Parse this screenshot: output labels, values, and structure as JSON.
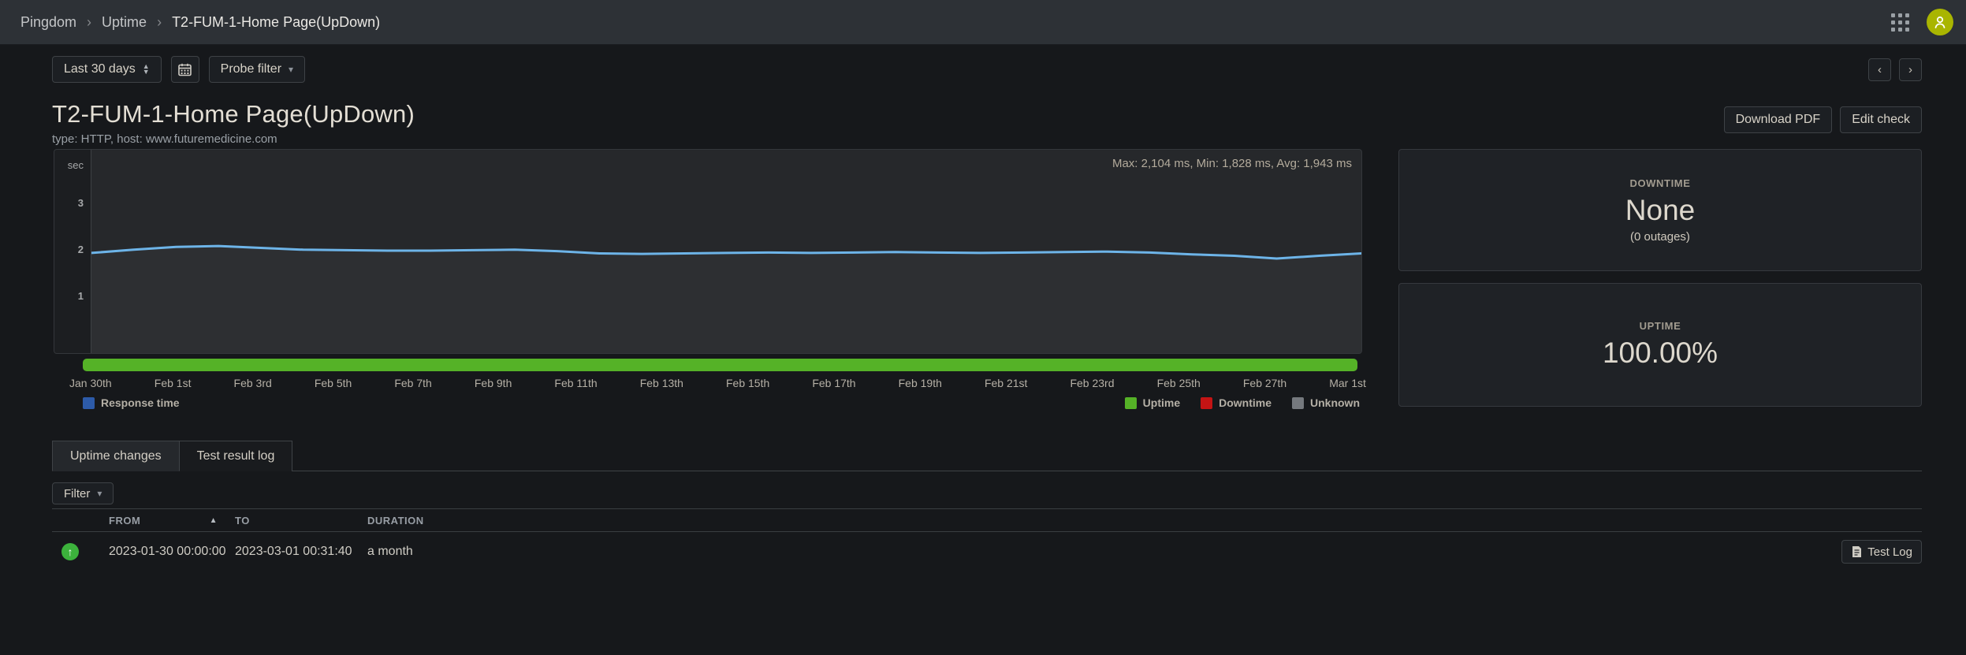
{
  "header": {
    "breadcrumb": [
      {
        "label": "Pingdom"
      },
      {
        "label": "Uptime"
      },
      {
        "label": "T2-FUM-1-Home Page(UpDown)"
      }
    ],
    "separator": "›",
    "avatar_color": "#a9b501"
  },
  "toolbar": {
    "time_range": "Last 30 days",
    "probe_filter": "Probe filter",
    "prev": "‹",
    "next": "›",
    "stepper_up": "▲",
    "stepper_down": "▼",
    "caret_down": "▾"
  },
  "check": {
    "title": "T2-FUM-1-Home Page(UpDown)",
    "meta": "type: HTTP, host: www.futuremedicine.com",
    "download_pdf": "Download PDF",
    "edit_check": "Edit check"
  },
  "chart_data": {
    "type": "line",
    "title": "Response time, last 30 days",
    "ylabel_unit": "sec",
    "stats": "Max: 2,104 ms, Min: 1,828 ms, Avg: 1,943 ms",
    "yticks": [
      3,
      2,
      1
    ],
    "ylim": [
      0,
      4.3
    ],
    "grid": false,
    "x_ticks": [
      "Jan 30th",
      "Feb 1st",
      "Feb 3rd",
      "Feb 5th",
      "Feb 7th",
      "Feb 9th",
      "Feb 11th",
      "Feb 13th",
      "Feb 15th",
      "Feb 17th",
      "Feb 19th",
      "Feb 21st",
      "Feb 23rd",
      "Feb 25th",
      "Feb 27th",
      "Mar 1st"
    ],
    "series": [
      {
        "name": "Response time",
        "unit": "sec",
        "color": "#6db4e8",
        "values": [
          1.95,
          2.02,
          2.08,
          2.1,
          2.06,
          2.02,
          2.01,
          2.0,
          2.0,
          2.01,
          2.02,
          1.99,
          1.94,
          1.93,
          1.94,
          1.95,
          1.96,
          1.95,
          1.96,
          1.97,
          1.96,
          1.95,
          1.96,
          1.97,
          1.98,
          1.96,
          1.92,
          1.89,
          1.83,
          1.89,
          1.94
        ]
      }
    ],
    "uptime_track": {
      "status": "Uptime",
      "color": "#55b227",
      "coverage_pct": 100
    },
    "legend_left": {
      "label": "Response time",
      "color": "#2d5ba9"
    },
    "legend_right": [
      {
        "label": "Uptime",
        "color": "#55b227"
      },
      {
        "label": "Downtime",
        "color": "#c41414"
      },
      {
        "label": "Unknown",
        "color": "#75797e"
      }
    ]
  },
  "summary_cards": {
    "downtime": {
      "label": "DOWNTIME",
      "value": "None",
      "subtext": "(0 outages)"
    },
    "uptime": {
      "label": "UPTIME",
      "value": "100.00%"
    }
  },
  "tabs": [
    {
      "label": "Uptime changes",
      "active": true
    },
    {
      "label": "Test result log",
      "active": false
    }
  ],
  "filter": {
    "label": "Filter"
  },
  "log_table": {
    "columns": [
      "FROM",
      "TO",
      "DURATION"
    ],
    "sort_column": "FROM",
    "sort_direction": "asc",
    "sort_glyph": "▲",
    "rows": [
      {
        "status": "up",
        "status_glyph": "↑",
        "status_color": "#3cb23c",
        "from": "2023-01-30 00:00:00",
        "to": "2023-03-01 00:31:40",
        "duration": "a month",
        "action": "Test Log"
      }
    ]
  }
}
